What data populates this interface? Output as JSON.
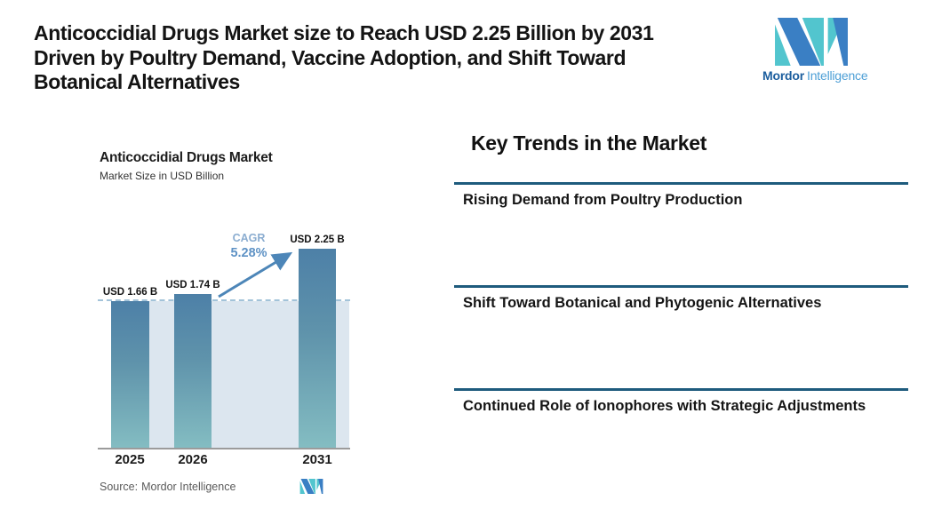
{
  "header": {
    "title_lines": [
      "Anticoccidial Drugs Market size to Reach USD 2.25 Billion by 2031",
      "Driven by Poultry Demand, Vaccine Adoption, and Shift Toward",
      "Botanical Alternatives"
    ]
  },
  "brand": {
    "name_bold": "Mordor",
    "name_light": "Intelligence",
    "colors": {
      "blue": "#3a7fc4",
      "teal": "#52c5ce"
    }
  },
  "chart": {
    "title": "Anticoccidial Drugs Market",
    "subtitle": "Market Size in USD Billion",
    "cagr_label": "CAGR",
    "cagr_value": "5.28%",
    "source_label": "Source:",
    "source_value": "Mordor Intelligence",
    "bars": [
      {
        "year": "2025",
        "label": "USD 1.66 B",
        "value": 1.66
      },
      {
        "year": "2026",
        "label": "USD 1.74 B",
        "value": 1.74
      },
      {
        "year": "2031",
        "label": "USD 2.25 B",
        "value": 2.25
      }
    ]
  },
  "chart_data": {
    "type": "bar",
    "categories": [
      "2025",
      "2026",
      "2031"
    ],
    "values": [
      1.66,
      1.74,
      2.25
    ],
    "data_labels": [
      "USD 1.66 B",
      "USD 1.74 B",
      "USD 2.25 B"
    ],
    "title": "Anticoccidial Drugs Market",
    "subtitle": "Market Size in USD Billion",
    "xlabel": "",
    "ylabel": "Market Size in USD Billion",
    "ylim": [
      0,
      2.6
    ],
    "grid": false,
    "legend": "none",
    "reference_line": {
      "y": 1.66,
      "style": "dashed"
    },
    "annotations": [
      {
        "text": "CAGR 5.28%",
        "type": "growth-arrow",
        "from": "2026",
        "to": "2031"
      }
    ],
    "bar_color_top": "#4d80a7",
    "bar_color_bottom": "#84bdc2",
    "arrow_color": "#4d86b8"
  },
  "trends": {
    "heading": "Key Trends in the Market",
    "rule_color": "#1e5b7d",
    "items": [
      "Rising Demand from Poultry Production",
      "Shift Toward Botanical and Phytogenic Alternatives",
      "Continued Role of Ionophores with Strategic Adjustments"
    ]
  }
}
